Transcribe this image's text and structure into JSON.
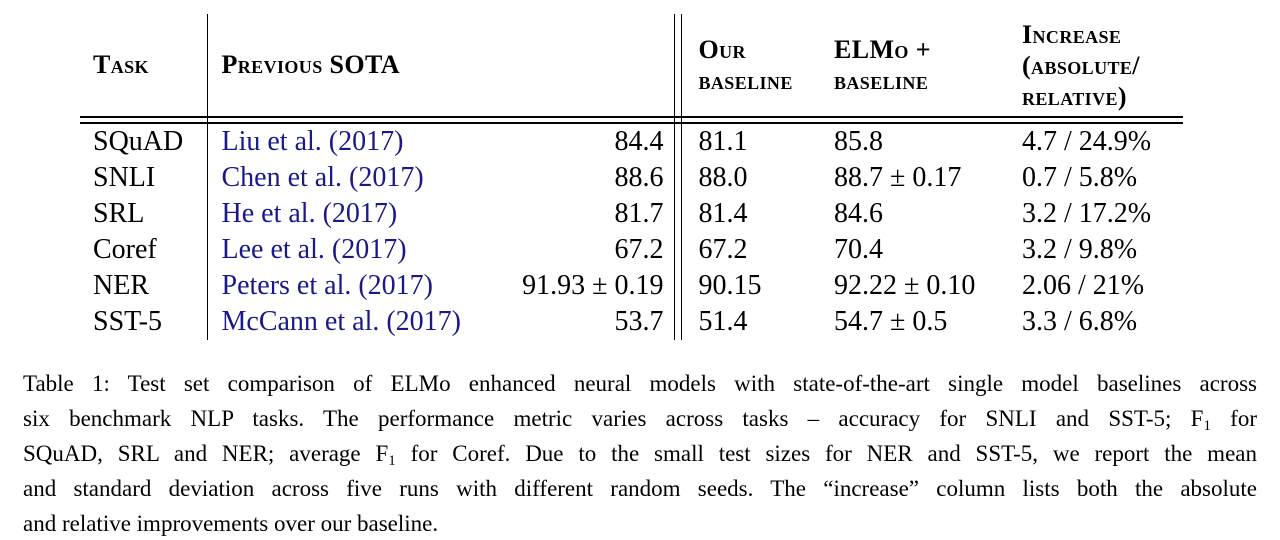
{
  "colors": {
    "background": "#ffffff",
    "text": "#000000",
    "citation_link": "#19198a",
    "rule": "#000000"
  },
  "table": {
    "headers": {
      "task": "Task",
      "previous_sota": "Previous SOTA",
      "our_baseline_lines": [
        "Our",
        "baseline"
      ],
      "elmo_baseline_lines": [
        "ELMo +",
        "baseline"
      ],
      "increase_lines": [
        "Increase",
        "(absolute/",
        "relative)"
      ]
    },
    "rows": [
      {
        "task": "SQuAD",
        "citation": "Liu et al. (2017)",
        "sota": "84.4",
        "our": "81.1",
        "elmo": "85.8",
        "increase": "4.7 / 24.9%"
      },
      {
        "task": "SNLI",
        "citation": "Chen et al. (2017)",
        "sota": "88.6",
        "our": "88.0",
        "elmo": "88.7 ± 0.17",
        "increase": "0.7 / 5.8%"
      },
      {
        "task": "SRL",
        "citation": "He et al. (2017)",
        "sota": "81.7",
        "our": "81.4",
        "elmo": "84.6",
        "increase": "3.2 / 17.2%"
      },
      {
        "task": "Coref",
        "citation": "Lee et al. (2017)",
        "sota": "67.2",
        "our": "67.2",
        "elmo": "70.4",
        "increase": "3.2 / 9.8%"
      },
      {
        "task": "NER",
        "citation": "Peters et al. (2017)",
        "sota": "91.93 ± 0.19",
        "our": "90.15",
        "elmo": "92.22 ± 0.10",
        "increase": "2.06 / 21%"
      },
      {
        "task": "SST-5",
        "citation": "McCann et al. (2017)",
        "sota": "53.7",
        "our": "51.4",
        "elmo": "54.7 ± 0.5",
        "increase": "3.3 / 6.8%"
      }
    ]
  },
  "caption": {
    "label": "Table 1:",
    "lines": [
      [
        {
          "t": "Table 1: Test set comparison of ELMo enhanced neural models with state-of-the-art single model baselines across"
        }
      ],
      [
        {
          "t": "six benchmark NLP tasks. The performance metric varies across tasks – accuracy for SNLI and SST-5; F"
        },
        {
          "s": "1"
        },
        {
          "t": " for"
        }
      ],
      [
        {
          "t": "SQuAD, SRL and NER; average F"
        },
        {
          "s": "1"
        },
        {
          "t": " for Coref. Due to the small test sizes for NER and SST-5, we report the mean"
        }
      ],
      [
        {
          "t": "and standard deviation across five runs with different random seeds. The “increase” column lists both the absolute"
        }
      ],
      [
        {
          "t": "and relative improvements over our baseline."
        }
      ]
    ]
  }
}
